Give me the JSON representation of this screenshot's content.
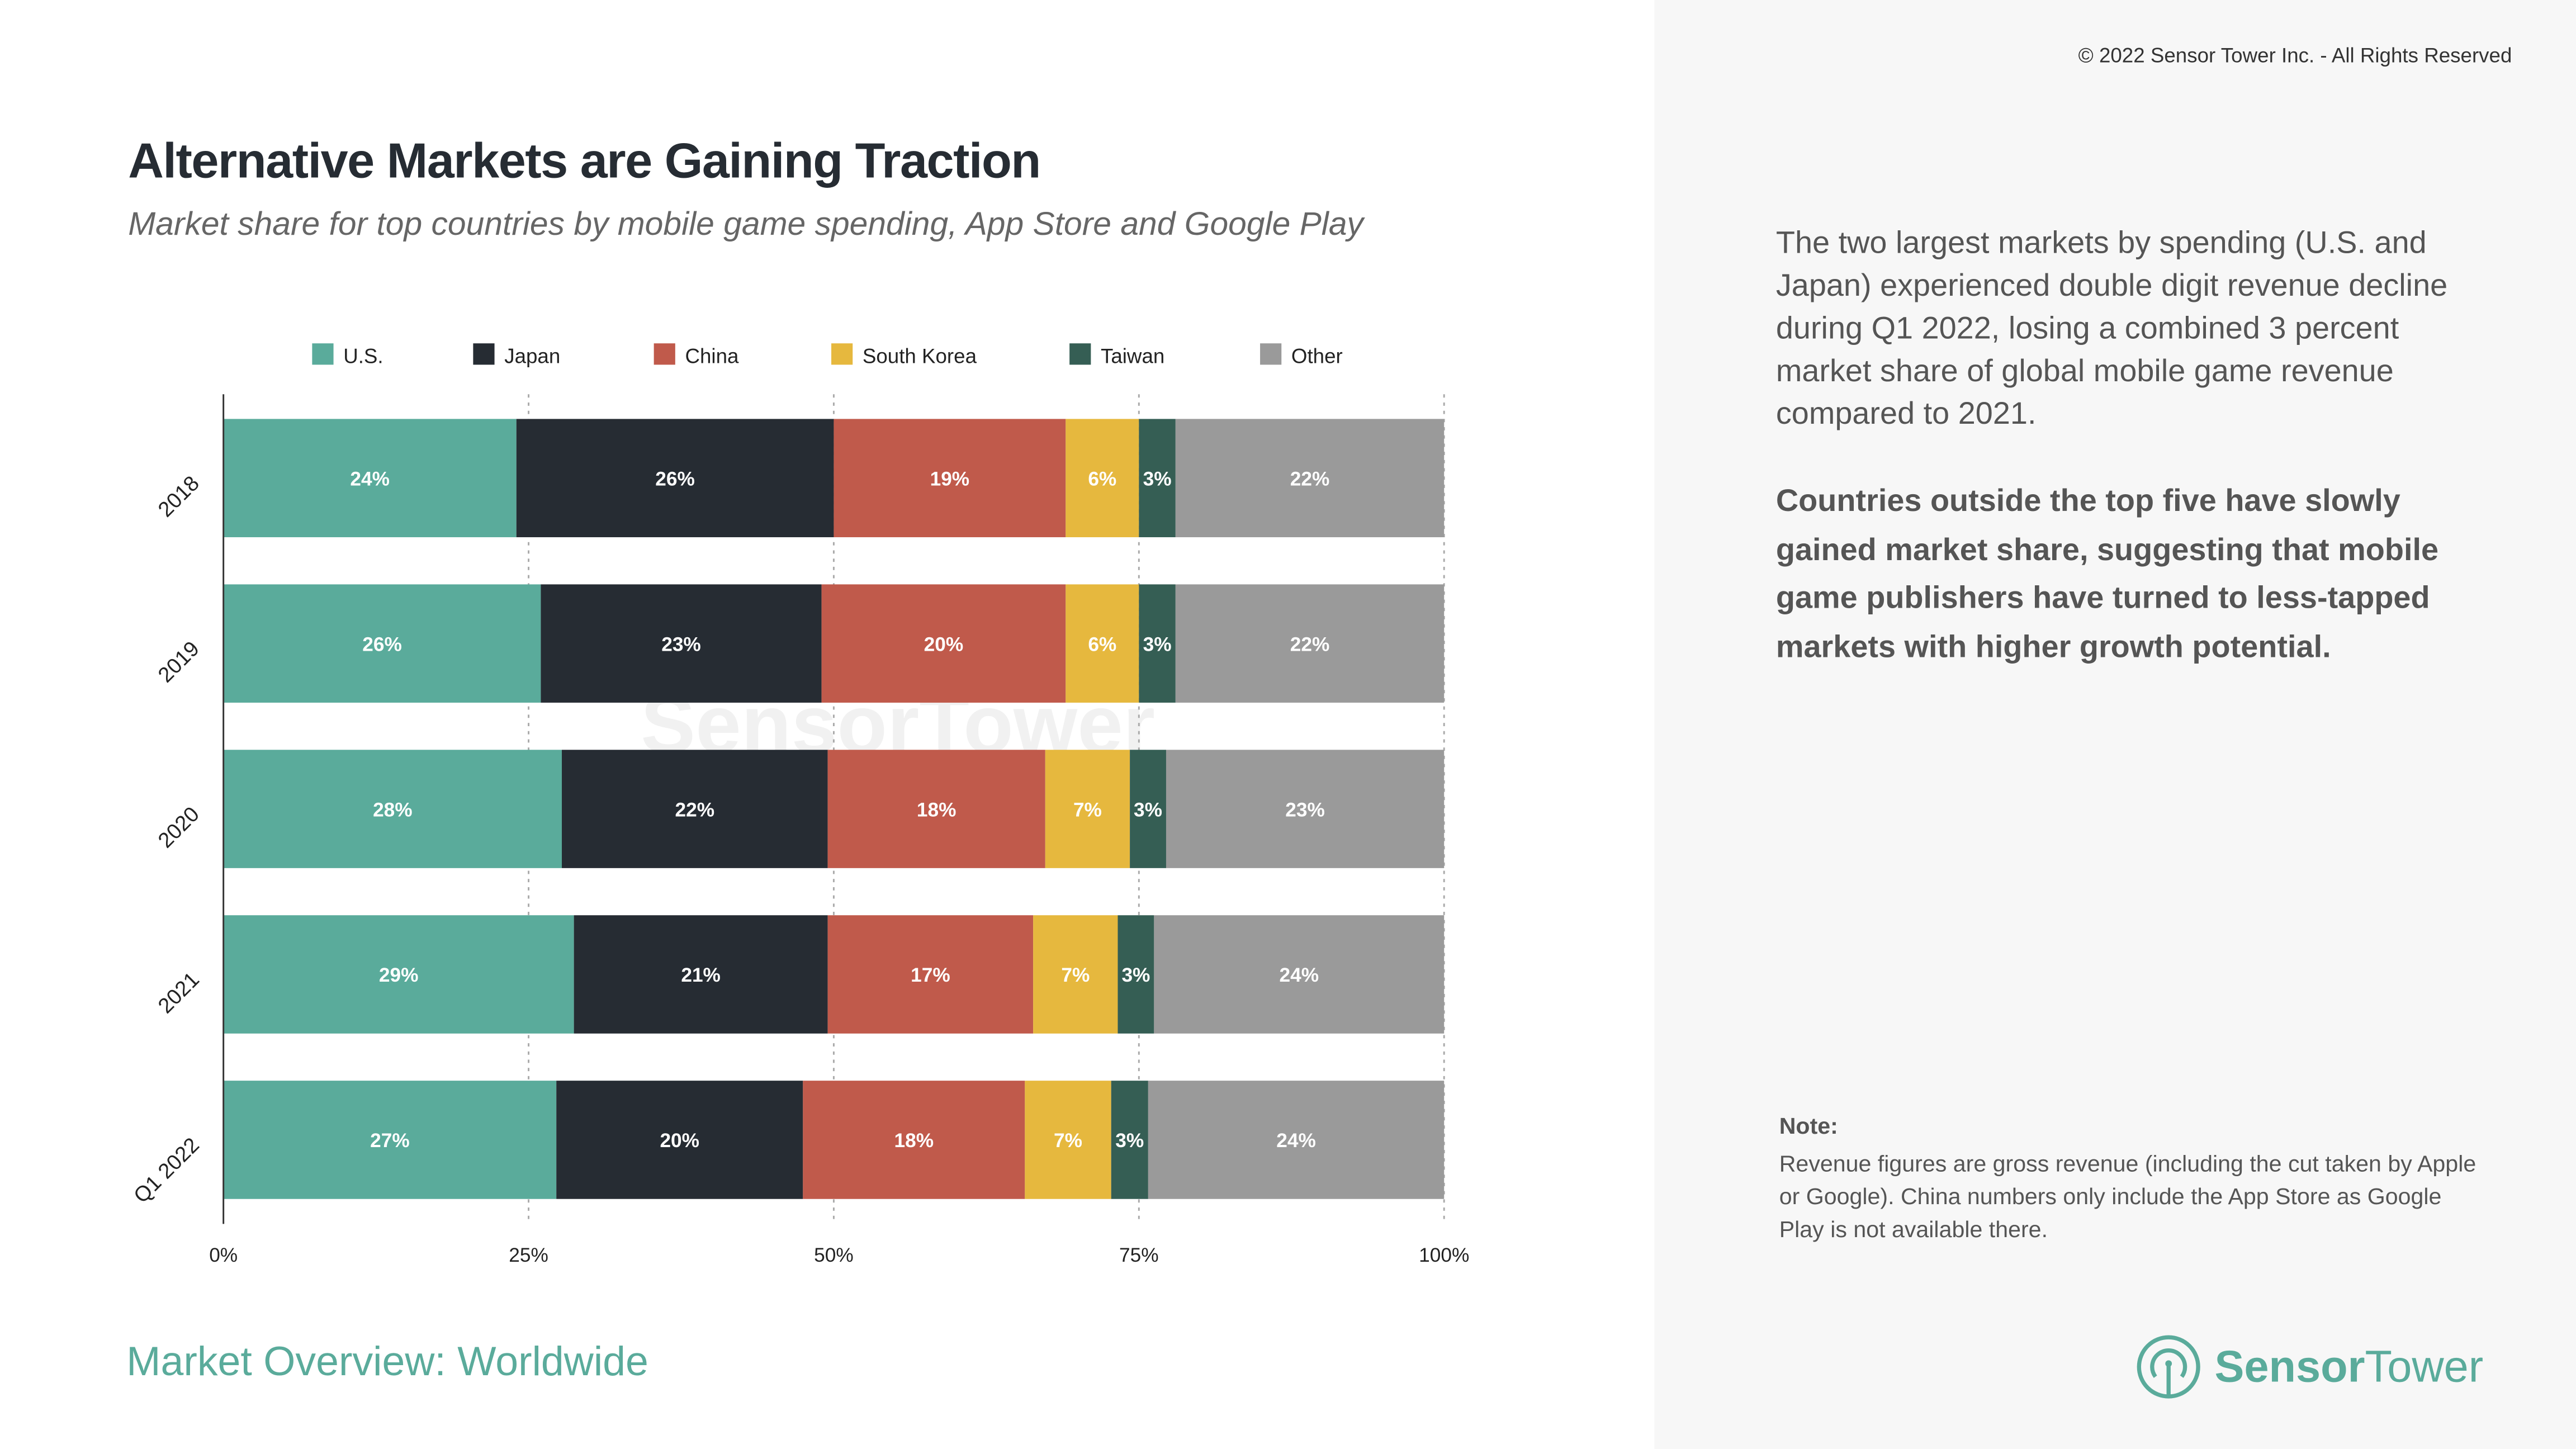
{
  "header": {
    "title": "Alternative Markets are Gaining Traction",
    "subtitle": "Market share for top countries by mobile game spending, App Store and Google Play",
    "copyright": "© 2022 Sensor Tower Inc. - All Rights Reserved"
  },
  "sidebar": {
    "paragraph1": "The two largest markets by spending (U.S. and Japan) experienced double digit revenue decline during Q1 2022, losing a combined 3 percent market share of global mobile game revenue compared to 2021.",
    "paragraph2": "Countries outside the top five have slowly gained market share, suggesting that mobile game publishers have turned to less-tapped markets with higher growth potential.",
    "note_heading": "Note:",
    "note_text": "Revenue figures are gross revenue (including the cut taken by Apple or Google). China numbers only include the App Store as Google Play is not available there."
  },
  "footer": {
    "section": "Market Overview: Worldwide",
    "logo_bold": "Sensor",
    "logo_light": "Tower",
    "watermark": "SensorTower"
  },
  "chart_data": {
    "type": "bar",
    "orientation": "horizontal",
    "stacked": true,
    "categories": [
      "2018",
      "2019",
      "2020",
      "2021",
      "Q1 2022"
    ],
    "series": [
      {
        "name": "U.S.",
        "color": "#5aab9b",
        "values": [
          24,
          26,
          28,
          29,
          27
        ]
      },
      {
        "name": "Japan",
        "color": "#262c33",
        "values": [
          26,
          23,
          22,
          21,
          20
        ]
      },
      {
        "name": "China",
        "color": "#c05a4b",
        "values": [
          19,
          20,
          18,
          17,
          18
        ]
      },
      {
        "name": "South Korea",
        "color": "#e6b83e",
        "values": [
          6,
          6,
          7,
          7,
          7
        ]
      },
      {
        "name": "Taiwan",
        "color": "#355e54",
        "values": [
          3,
          3,
          3,
          3,
          3
        ]
      },
      {
        "name": "Other",
        "color": "#9a9a9a",
        "values": [
          22,
          22,
          23,
          24,
          24
        ]
      }
    ],
    "value_suffix": "%",
    "xlim": [
      0,
      100
    ],
    "xticks": [
      "0%",
      "25%",
      "50%",
      "75%",
      "100%"
    ],
    "grid": "vertical dotted",
    "legend": "top"
  }
}
